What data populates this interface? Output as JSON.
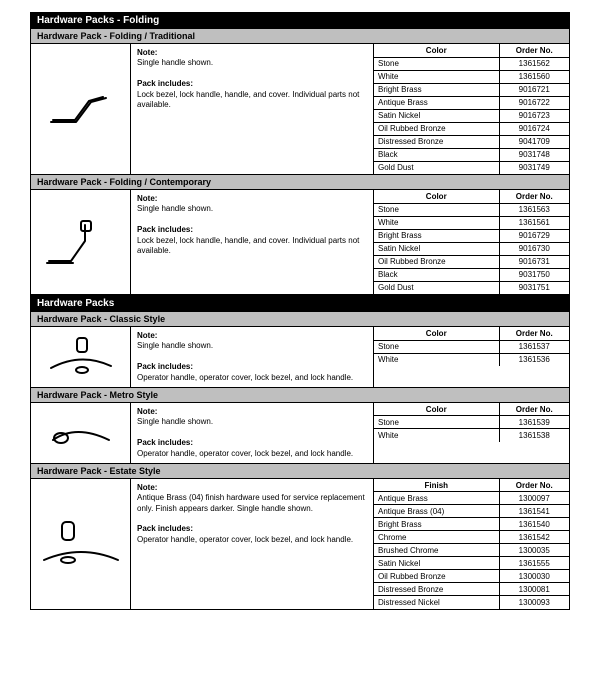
{
  "sections": [
    {
      "title": "Hardware Packs - Folding",
      "packs": [
        {
          "subtitle": "Hardware Pack - Folding / Traditional",
          "icon": "handle-folding-traditional",
          "note_label": "Note:",
          "note_text": "Single handle shown.",
          "includes_label": "Pack includes:",
          "includes_text": "Lock bezel, lock handle, handle, and cover. Individual parts not available.",
          "col1_header": "Color",
          "col2_header": "Order No.",
          "rows": [
            {
              "c1": "Stone",
              "c2": "1361562"
            },
            {
              "c1": "White",
              "c2": "1361560"
            },
            {
              "c1": "Bright Brass",
              "c2": "9016721"
            },
            {
              "c1": "Antique Brass",
              "c2": "9016722"
            },
            {
              "c1": "Satin Nickel",
              "c2": "9016723"
            },
            {
              "c1": "Oil Rubbed Bronze",
              "c2": "9016724"
            },
            {
              "c1": "Distressed Bronze",
              "c2": "9041709"
            },
            {
              "c1": "Black",
              "c2": "9031748"
            },
            {
              "c1": "Gold Dust",
              "c2": "9031749"
            }
          ]
        },
        {
          "subtitle": "Hardware Pack - Folding / Contemporary",
          "icon": "handle-folding-contemporary",
          "note_label": "Note:",
          "note_text": "Single handle shown.",
          "includes_label": "Pack includes:",
          "includes_text": "Lock bezel, lock handle, handle, and cover. Individual parts not available.",
          "col1_header": "Color",
          "col2_header": "Order No.",
          "rows": [
            {
              "c1": "Stone",
              "c2": "1361563"
            },
            {
              "c1": "White",
              "c2": "1361561"
            },
            {
              "c1": "Bright Brass",
              "c2": "9016729"
            },
            {
              "c1": "Satin Nickel",
              "c2": "9016730"
            },
            {
              "c1": "Oil Rubbed Bronze",
              "c2": "9016731"
            },
            {
              "c1": "Black",
              "c2": "9031750"
            },
            {
              "c1": "Gold Dust",
              "c2": "9031751"
            }
          ]
        }
      ]
    },
    {
      "title": "Hardware Packs",
      "packs": [
        {
          "subtitle": "Hardware Pack - Classic Style",
          "icon": "handle-classic",
          "note_label": "Note:",
          "note_text": "Single handle shown.",
          "includes_label": "Pack includes:",
          "includes_text": "Operator handle, operator cover, lock bezel, and lock handle.",
          "col1_header": "Color",
          "col2_header": "Order No.",
          "rows": [
            {
              "c1": "Stone",
              "c2": "1361537"
            },
            {
              "c1": "White",
              "c2": "1361536"
            }
          ]
        },
        {
          "subtitle": "Hardware Pack - Metro Style",
          "icon": "handle-metro",
          "note_label": "Note:",
          "note_text": "Single handle shown.",
          "includes_label": "Pack includes:",
          "includes_text": "Operator handle, operator cover, lock bezel, and lock handle.",
          "col1_header": "Color",
          "col2_header": "Order No.",
          "rows": [
            {
              "c1": "Stone",
              "c2": "1361539"
            },
            {
              "c1": "White",
              "c2": "1361538"
            }
          ]
        },
        {
          "subtitle": "Hardware Pack - Estate Style",
          "icon": "handle-estate",
          "note_label": "Note:",
          "note_text": "Antique Brass (04) finish hardware used for service replacement only. Finish appears darker. Single handle shown.",
          "includes_label": "Pack includes:",
          "includes_text": "Operator handle, operator cover, lock bezel, and lock handle.",
          "col1_header": "Finish",
          "col2_header": "Order No.",
          "rows": [
            {
              "c1": "Antique Brass",
              "c2": "1300097"
            },
            {
              "c1": "Antique Brass (04)",
              "c2": "1361541"
            },
            {
              "c1": "Bright Brass",
              "c2": "1361540"
            },
            {
              "c1": "Chrome",
              "c2": "1361542"
            },
            {
              "c1": "Brushed Chrome",
              "c2": "1300035"
            },
            {
              "c1": "Satin Nickel",
              "c2": "1361555"
            },
            {
              "c1": "Oil Rubbed Bronze",
              "c2": "1300030"
            },
            {
              "c1": "Distressed Bronze",
              "c2": "1300081"
            },
            {
              "c1": "Distressed Nickel",
              "c2": "1300093"
            }
          ]
        }
      ]
    }
  ]
}
